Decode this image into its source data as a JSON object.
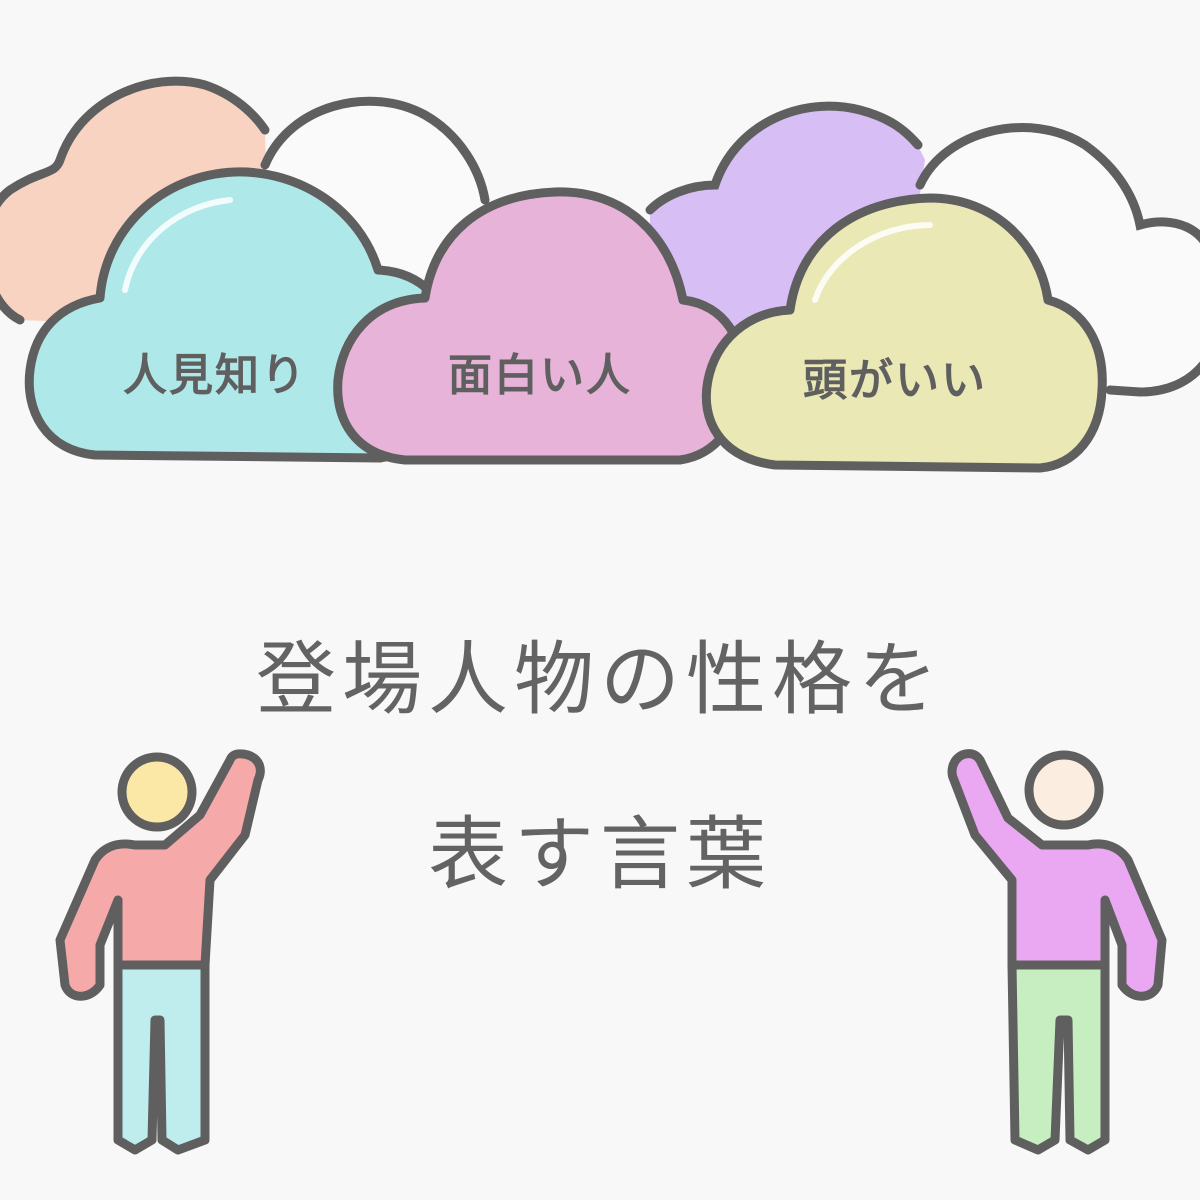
{
  "clouds": {
    "cloud_1_label": "人見知り",
    "cloud_2_label": "面白い人",
    "cloud_3_label": "頭がいい"
  },
  "title": {
    "line_1": "登場人物の性格を",
    "line_2": "表す言葉"
  },
  "colors": {
    "background": "#f8f8f8",
    "outline": "#5f5f5f",
    "cloud_peach": "#f8d3c2",
    "cloud_cyan": "#aee8e8",
    "cloud_pink": "#e7b3d8",
    "cloud_lavender": "#d7bff5",
    "cloud_yellow": "#eae8b4",
    "cloud_white": "#fafafa",
    "person_left_shirt": "#f6a9a9",
    "person_left_pants": "#bfecec",
    "person_left_head": "#fbe7a6",
    "person_right_shirt": "#eba8f2",
    "person_right_pants": "#c6eec1",
    "person_right_head": "#fbeee0"
  }
}
